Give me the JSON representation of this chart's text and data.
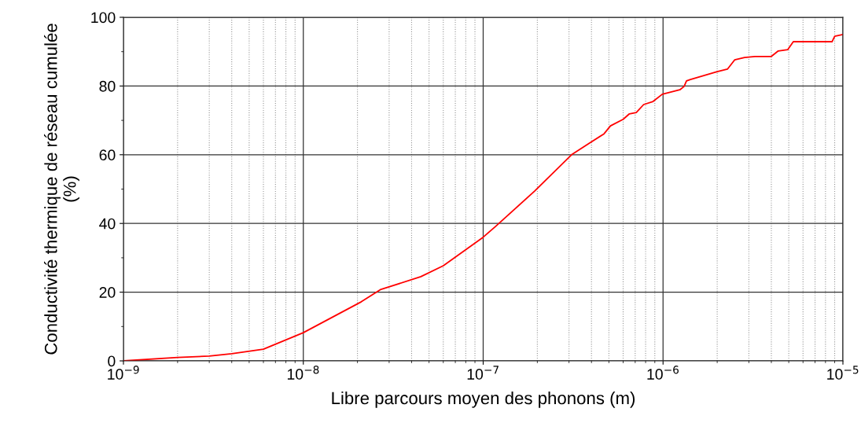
{
  "chart_data": {
    "type": "line",
    "xlabel": "Libre parcours moyen des phonons (m)",
    "ylabel": "Conductivité thermique de réseau cumulée\n(%)",
    "log": "x",
    "grid": true,
    "legend": false,
    "marker": "none",
    "line_style": "solid",
    "xlim": [
      1e-09,
      1e-05
    ],
    "ylim": [
      0,
      100
    ],
    "xticks": [
      {
        "value": 1e-09,
        "label": "10$^{−9}$"
      },
      {
        "value": 1e-08,
        "label": "10$^{−8}$"
      },
      {
        "value": 1e-07,
        "label": "10$^{−7}$"
      },
      {
        "value": 1e-06,
        "label": "10$^{−6}$"
      },
      {
        "value": 1e-05,
        "label": "10$^{−5}$"
      }
    ],
    "yticks": [
      0,
      20,
      40,
      60,
      80,
      100
    ],
    "x": [
      1e-09,
      2e-09,
      3e-09,
      4e-09,
      6e-09,
      1e-08,
      2.1e-08,
      2.7e-08,
      4.5e-08,
      6e-08,
      1e-07,
      1.17e-07,
      1.93e-07,
      3.1e-07,
      3.9e-07,
      4.7e-07,
      5.1e-07,
      6e-07,
      6.5e-07,
      7.1e-07,
      7.8e-07,
      8.8e-07,
      9.9e-07,
      1.24e-06,
      1.31e-06,
      1.35e-06,
      1.42e-06,
      2e-06,
      2.28e-06,
      2.5e-06,
      2.84e-06,
      3.24e-06,
      4e-06,
      4.37e-06,
      4.94e-06,
      5.3e-06,
      8.7e-06,
      9e-06,
      1e-05
    ],
    "series": [
      {
        "color": "#ff0000",
        "values": [
          0,
          1.0,
          1.4,
          2.1,
          3.4,
          8.2,
          17.2,
          20.8,
          24.5,
          27.7,
          36,
          39.1,
          49.4,
          60,
          63.4,
          66.1,
          68.4,
          70.3,
          71.9,
          72.3,
          74.6,
          75.5,
          77.6,
          78.9,
          79.9,
          81.5,
          81.9,
          84.2,
          84.9,
          87.6,
          88.3,
          88.6,
          88.6,
          90.2,
          90.6,
          92.9,
          92.9,
          94.5,
          95.0
        ]
      }
    ]
  }
}
